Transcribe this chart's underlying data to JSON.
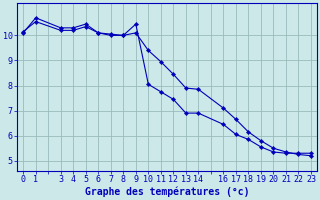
{
  "title": "Graphe des températures (°c)",
  "bg_color": "#cce8e8",
  "line_color": "#0000bb",
  "grid_color": "#99bbbb",
  "x_ticks": [
    0,
    1,
    3,
    4,
    5,
    6,
    7,
    8,
    9,
    10,
    11,
    12,
    13,
    14,
    16,
    17,
    18,
    19,
    20,
    21,
    22,
    23
  ],
  "line1_x": [
    0,
    1,
    3,
    4,
    5,
    6,
    7,
    8,
    9,
    10,
    11,
    12,
    13,
    14,
    16,
    17,
    18,
    19,
    20,
    21,
    22,
    23
  ],
  "line1_y": [
    10.1,
    10.7,
    10.3,
    10.3,
    10.45,
    10.1,
    10.0,
    10.0,
    10.45,
    8.05,
    7.75,
    7.45,
    6.9,
    6.9,
    6.45,
    6.05,
    5.85,
    5.55,
    5.35,
    5.3,
    5.3,
    5.3
  ],
  "line2_x": [
    0,
    1,
    3,
    4,
    5,
    6,
    7,
    8,
    9,
    10,
    11,
    12,
    13,
    14,
    16,
    17,
    18,
    19,
    20,
    21,
    22,
    23
  ],
  "line2_y": [
    10.15,
    10.55,
    10.2,
    10.2,
    10.35,
    10.1,
    10.05,
    10.0,
    10.1,
    9.4,
    8.95,
    8.45,
    7.9,
    7.85,
    7.1,
    6.65,
    6.15,
    5.8,
    5.5,
    5.35,
    5.25,
    5.2
  ],
  "ylim": [
    4.6,
    11.3
  ],
  "yticks": [
    5,
    6,
    7,
    8,
    9,
    10
  ],
  "figsize": [
    3.2,
    2.0
  ],
  "dpi": 100,
  "xlabel_fontsize": 7.0,
  "tick_fontsize": 6.0,
  "line_width": 0.8,
  "marker_size": 2.2
}
